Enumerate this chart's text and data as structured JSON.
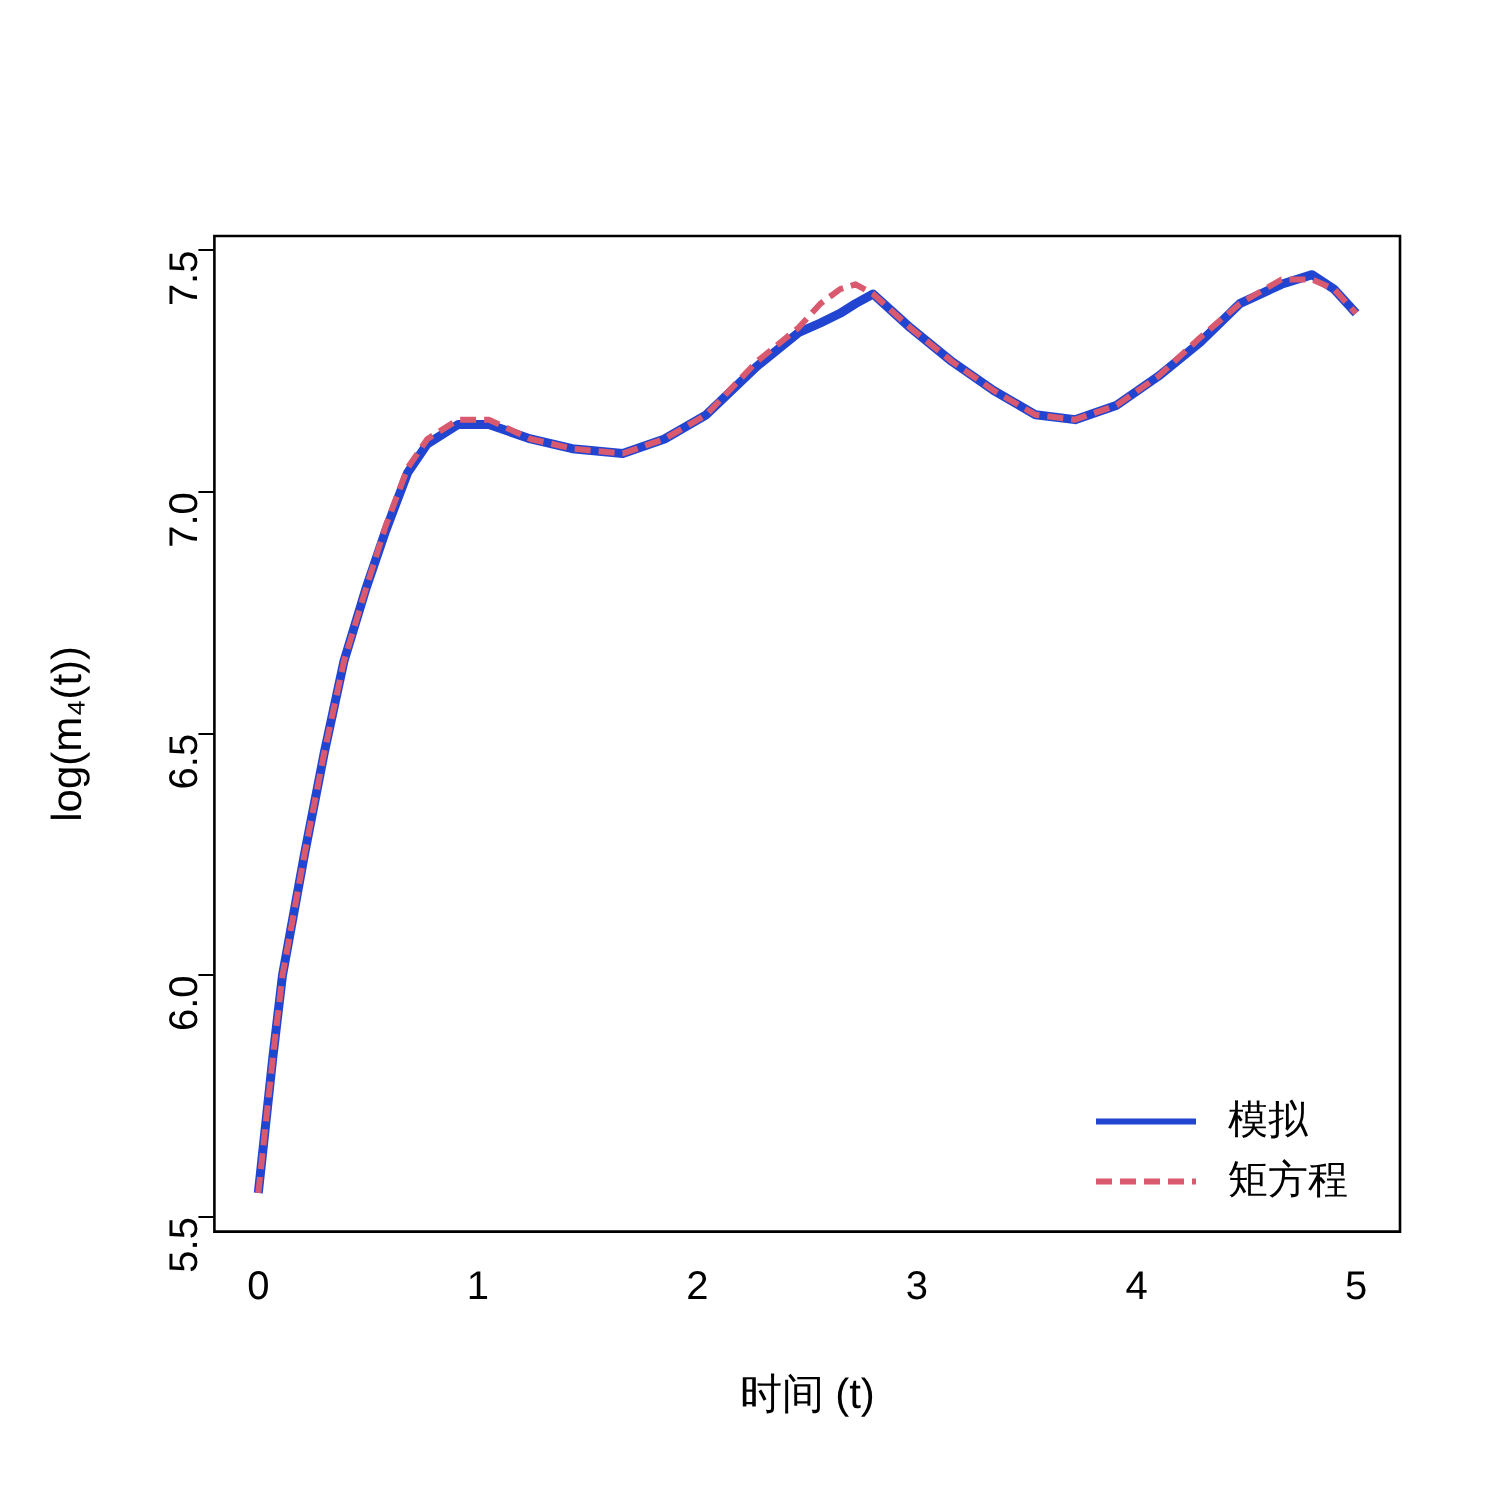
{
  "chart_data": {
    "type": "line",
    "xlabel": "时间 (t)",
    "ylabel": "log(m₄(t))",
    "x": [
      0,
      0.066,
      0.11,
      0.21,
      0.3,
      0.39,
      0.49,
      0.58,
      0.68,
      0.77,
      0.91,
      1.05,
      1.24,
      1.43,
      1.66,
      1.85,
      2.04,
      2.27,
      2.46,
      2.56,
      2.65,
      2.72,
      2.8,
      2.97,
      3.16,
      3.35,
      3.54,
      3.72,
      3.91,
      4.1,
      4.29,
      4.47,
      4.66,
      4.8,
      4.9,
      5
    ],
    "series": [
      {
        "name": "模拟",
        "color": "#2145d1",
        "line_style": "solid",
        "values": [
          5.55,
          5.83,
          6.0,
          6.25,
          6.46,
          6.65,
          6.8,
          6.92,
          7.04,
          7.1,
          7.14,
          7.14,
          7.11,
          7.09,
          7.08,
          7.11,
          7.16,
          7.26,
          7.33,
          7.35,
          7.37,
          7.39,
          7.41,
          7.34,
          7.27,
          7.21,
          7.16,
          7.15,
          7.18,
          7.24,
          7.31,
          7.39,
          7.43,
          7.45,
          7.42,
          7.37
        ]
      },
      {
        "name": "矩方程",
        "color": "#d9596e",
        "line_style": "dashed",
        "values": [
          5.55,
          5.83,
          6.0,
          6.25,
          6.46,
          6.65,
          6.8,
          6.93,
          7.05,
          7.11,
          7.15,
          7.15,
          7.11,
          7.09,
          7.08,
          7.11,
          7.16,
          7.27,
          7.34,
          7.39,
          7.42,
          7.43,
          7.41,
          7.34,
          7.27,
          7.21,
          7.16,
          7.15,
          7.18,
          7.24,
          7.32,
          7.39,
          7.44,
          7.44,
          7.42,
          7.37
        ]
      }
    ],
    "xlim": [
      -0.2,
      5.2
    ],
    "ylim": [
      5.47,
      7.53
    ],
    "xticks": [
      0,
      1,
      2,
      3,
      4,
      5
    ],
    "yticks": [
      5.5,
      {
        "value": 6,
        "label": "6.0"
      },
      6.5,
      {
        "value": 7,
        "label": "7.0"
      },
      7.5
    ],
    "grid": false,
    "legend": "bottom right",
    "marker": "none"
  }
}
